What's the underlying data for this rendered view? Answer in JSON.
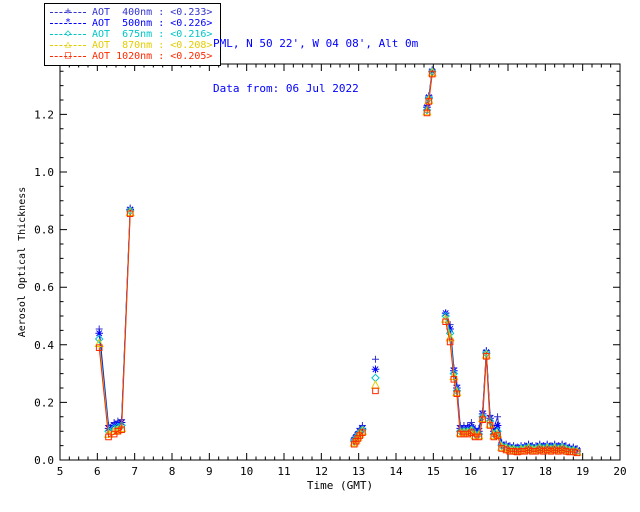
{
  "header": {
    "location": "PML, N 50 22', W 04 08', Alt 0m",
    "date_line": "Data from: 06 Jul 2022",
    "color": "#0000FF"
  },
  "legend": {
    "items": [
      {
        "label": "AOT  400nm : <0.233>",
        "color": "#3333CC",
        "marker_glyph": "+"
      },
      {
        "label": "AOT  500nm : <0.226>",
        "color": "#0000FF",
        "marker_glyph": "*"
      },
      {
        "label": "AOT  675nm : <0.216>",
        "color": "#00C5C5",
        "marker_glyph": "◇"
      },
      {
        "label": "AOT  870nm : <0.208>",
        "color": "#E3CC00",
        "marker_glyph": "△"
      },
      {
        "label": "AOT 1020nm : <0.205>",
        "color": "#FF2A00",
        "marker_glyph": "□"
      }
    ]
  },
  "chart_data": {
    "type": "line",
    "title": "",
    "xlabel": "Time (GMT)",
    "ylabel": "Aerosol Optical Thickness",
    "xlim": [
      5,
      20
    ],
    "ylim": [
      0,
      1.375
    ],
    "xticks": [
      5,
      6,
      7,
      8,
      9,
      10,
      11,
      12,
      13,
      14,
      15,
      16,
      17,
      18,
      19,
      20
    ],
    "yticks": [
      0.0,
      0.2,
      0.4,
      0.6,
      0.8,
      1.0,
      1.2
    ],
    "x_minor_step": 0.25,
    "y_minor_step": 0.05,
    "grid": false,
    "legend_position": "top-left",
    "segments_x": [
      [
        6.05,
        6.3,
        6.45,
        6.55,
        6.65,
        6.88
      ],
      [
        12.88,
        12.93,
        12.98,
        13.03,
        13.1
      ],
      [
        13.45
      ],
      [
        14.83,
        14.88,
        14.97
      ],
      [
        15.33,
        15.45,
        15.55,
        15.63,
        15.72,
        15.82,
        15.92,
        16.02,
        16.12,
        16.22,
        16.32,
        16.42,
        16.52,
        16.62,
        16.72,
        16.83
      ],
      [
        16.95,
        17.05,
        17.15,
        17.25,
        17.35,
        17.45,
        17.55,
        17.65,
        17.75,
        17.85,
        17.95,
        18.05,
        18.15,
        18.25,
        18.35,
        18.45,
        18.55,
        18.65,
        18.75,
        18.85
      ]
    ],
    "series": [
      {
        "name": "AOT 400nm",
        "mean": "<0.233>",
        "color": "#3333CC",
        "marker": "plus",
        "values": [
          [
            0.455,
            0.12,
            0.13,
            0.135,
            0.14,
            0.875
          ],
          [
            0.075,
            0.085,
            0.095,
            0.11,
            0.12
          ],
          [
            0.35
          ],
          [
            1.23,
            1.265,
            1.355
          ],
          [
            0.51,
            0.47,
            0.32,
            0.26,
            0.12,
            0.12,
            0.12,
            0.13,
            0.11,
            0.11,
            0.17,
            0.38,
            0.155,
            0.11,
            0.15,
            0.06
          ],
          [
            0.055,
            0.05,
            0.05,
            0.045,
            0.05,
            0.05,
            0.055,
            0.05,
            0.05,
            0.055,
            0.05,
            0.055,
            0.05,
            0.055,
            0.05,
            0.055,
            0.05,
            0.045,
            0.045,
            0.04
          ]
        ]
      },
      {
        "name": "AOT 500nm",
        "mean": "<0.226>",
        "color": "#0000FF",
        "marker": "asterisk",
        "values": [
          [
            0.44,
            0.11,
            0.12,
            0.125,
            0.13,
            0.87
          ],
          [
            0.07,
            0.08,
            0.09,
            0.1,
            0.11
          ],
          [
            0.315
          ],
          [
            1.225,
            1.26,
            1.35
          ],
          [
            0.51,
            0.455,
            0.31,
            0.25,
            0.11,
            0.11,
            0.11,
            0.115,
            0.1,
            0.1,
            0.16,
            0.375,
            0.145,
            0.1,
            0.12,
            0.055
          ],
          [
            0.05,
            0.045,
            0.045,
            0.04,
            0.045,
            0.045,
            0.05,
            0.045,
            0.045,
            0.05,
            0.045,
            0.05,
            0.045,
            0.05,
            0.045,
            0.05,
            0.045,
            0.04,
            0.04,
            0.035
          ]
        ]
      },
      {
        "name": "AOT 675nm",
        "mean": "<0.216>",
        "color": "#00C5C5",
        "marker": "diamond",
        "values": [
          [
            0.42,
            0.1,
            0.11,
            0.115,
            0.12,
            0.865
          ],
          [
            0.065,
            0.075,
            0.085,
            0.095,
            0.105
          ],
          [
            0.285
          ],
          [
            1.215,
            1.255,
            1.348
          ],
          [
            0.5,
            0.44,
            0.3,
            0.24,
            0.1,
            0.1,
            0.1,
            0.105,
            0.09,
            0.09,
            0.15,
            0.37,
            0.135,
            0.09,
            0.1,
            0.05
          ],
          [
            0.045,
            0.04,
            0.04,
            0.035,
            0.04,
            0.04,
            0.045,
            0.04,
            0.04,
            0.045,
            0.04,
            0.045,
            0.04,
            0.045,
            0.04,
            0.045,
            0.04,
            0.035,
            0.035,
            0.03
          ]
        ]
      },
      {
        "name": "AOT 870nm",
        "mean": "<0.208>",
        "color": "#E3CC00",
        "marker": "triangle",
        "values": [
          [
            0.405,
            0.09,
            0.1,
            0.105,
            0.11,
            0.86
          ],
          [
            0.06,
            0.07,
            0.08,
            0.09,
            0.1
          ],
          [
            0.26
          ],
          [
            1.21,
            1.25,
            1.345
          ],
          [
            0.49,
            0.425,
            0.29,
            0.235,
            0.095,
            0.095,
            0.095,
            0.1,
            0.085,
            0.085,
            0.145,
            0.365,
            0.125,
            0.085,
            0.09,
            0.045
          ],
          [
            0.04,
            0.035,
            0.035,
            0.03,
            0.035,
            0.035,
            0.04,
            0.035,
            0.035,
            0.04,
            0.035,
            0.04,
            0.035,
            0.04,
            0.035,
            0.04,
            0.035,
            0.03,
            0.03,
            0.028
          ]
        ]
      },
      {
        "name": "AOT 1020nm",
        "mean": "<0.205>",
        "color": "#FF2A00",
        "marker": "square",
        "values": [
          [
            0.39,
            0.08,
            0.09,
            0.1,
            0.105,
            0.855
          ],
          [
            0.055,
            0.065,
            0.075,
            0.085,
            0.095
          ],
          [
            0.24
          ],
          [
            1.205,
            1.245,
            1.34
          ],
          [
            0.48,
            0.41,
            0.28,
            0.23,
            0.09,
            0.09,
            0.09,
            0.095,
            0.08,
            0.08,
            0.14,
            0.36,
            0.12,
            0.08,
            0.085,
            0.04
          ],
          [
            0.035,
            0.03,
            0.03,
            0.028,
            0.03,
            0.03,
            0.035,
            0.03,
            0.03,
            0.035,
            0.03,
            0.035,
            0.03,
            0.035,
            0.03,
            0.035,
            0.03,
            0.028,
            0.028,
            0.025
          ]
        ]
      }
    ]
  }
}
